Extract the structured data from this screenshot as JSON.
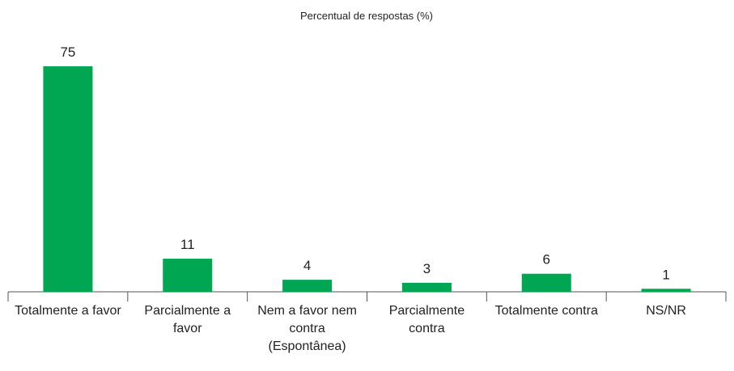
{
  "chart_data": {
    "type": "bar",
    "title": "Percentual de respostas (%)",
    "categories": [
      "Totalmente a favor",
      "Parcialmente a favor",
      "Nem a favor nem contra (Espontânea)",
      "Parcialmente contra",
      "Totalmente contra",
      "NS/NR"
    ],
    "values": [
      75,
      11,
      4,
      3,
      6,
      1
    ],
    "color": "#00a651"
  }
}
